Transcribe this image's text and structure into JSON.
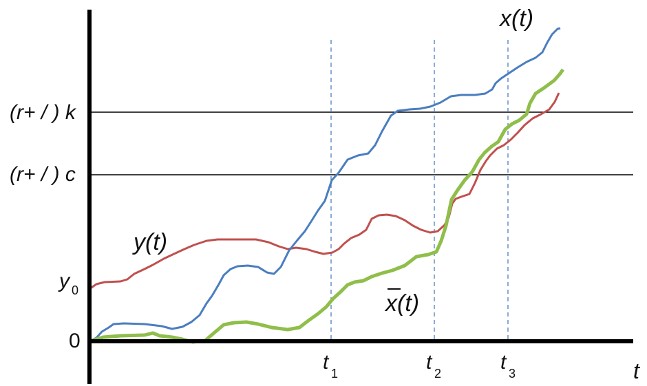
{
  "labels": {
    "level_k": "(r+ / ) k",
    "level_c": "(r+ / ) c",
    "y0_main": "y",
    "y0_sub": "0",
    "zero": "0",
    "t_axis": "t",
    "t1_main": "t",
    "t1_sub": "1",
    "t2_main": "t",
    "t2_sub": "2",
    "t3_main": "t",
    "t3_sub": "3",
    "x_curve": "x(t)",
    "y_curve": "y(t)",
    "xbar_curve": "x(t)"
  },
  "colors": {
    "x_curve": "#4a7ebf",
    "y_curve": "#c0504d",
    "xbar_curve": "#8fbe4a",
    "guides": "#4a7ebf",
    "axes": "#000000"
  }
}
